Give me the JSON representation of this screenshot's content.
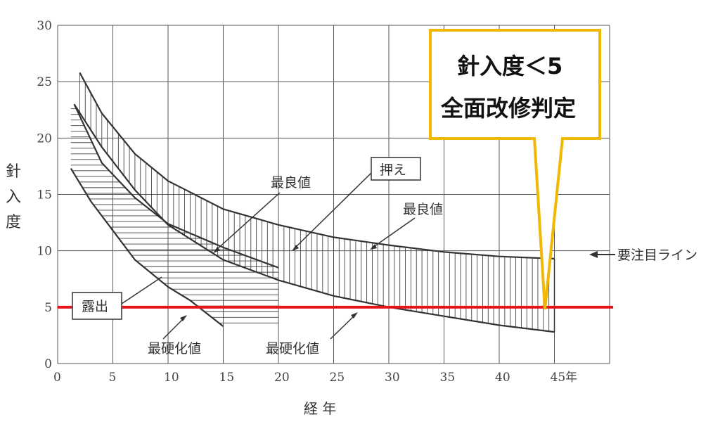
{
  "chart_data": {
    "type": "area",
    "xlabel": "経 年",
    "ylabel": "針入度",
    "x_ticks": [
      "0",
      "5",
      "10",
      "15",
      "20",
      "25",
      "30",
      "35",
      "40",
      "45年"
    ],
    "y_ticks": [
      "0",
      "5",
      "10",
      "15",
      "20",
      "25",
      "30"
    ],
    "xlim": [
      0,
      50
    ],
    "ylim": [
      0,
      30
    ],
    "grid": true,
    "bands": [
      {
        "hatch": "vertical",
        "upper": [
          [
            2,
            25.8
          ],
          [
            4,
            22.2
          ],
          [
            7,
            18.6
          ],
          [
            10,
            16.2
          ],
          [
            15,
            13.7
          ],
          [
            20,
            12.3
          ],
          [
            25,
            11.2
          ],
          [
            30,
            10.5
          ],
          [
            35,
            9.9
          ],
          [
            40,
            9.5
          ],
          [
            45,
            9.3
          ]
        ],
        "lower": [
          [
            1.5,
            23.0
          ],
          [
            4,
            19.2
          ],
          [
            7,
            15.4
          ],
          [
            10,
            12.3
          ],
          [
            15,
            9.2
          ],
          [
            20,
            7.4
          ],
          [
            25,
            6.0
          ],
          [
            30,
            5.0
          ],
          [
            35,
            4.2
          ],
          [
            40,
            3.4
          ],
          [
            45,
            2.8
          ]
        ]
      },
      {
        "hatch": "horizontal",
        "upper": [
          [
            1.5,
            23.0
          ],
          [
            4,
            17.8
          ],
          [
            7,
            14.7
          ],
          [
            10,
            12.4
          ],
          [
            15,
            10.3
          ],
          [
            20,
            8.5
          ]
        ],
        "lower": [
          [
            1.2,
            17.3
          ],
          [
            3,
            14.4
          ],
          [
            5,
            11.8
          ],
          [
            7,
            9.2
          ],
          [
            10,
            6.8
          ],
          [
            12,
            5.6
          ],
          [
            15,
            3.3
          ]
        ]
      }
    ],
    "threshold": {
      "value": 5,
      "color": "#e8141c"
    },
    "annotations": {
      "best_left": "最良値",
      "best_right": "最良値",
      "press": "押え",
      "exposed": "露出",
      "hard_left": "最硬化値",
      "hard_right": "最硬化値",
      "attention_line": "要注目ライン"
    },
    "callout": {
      "line1": "針入度＜5",
      "line2": "全面改修判定",
      "border_color": "#f2b705"
    }
  }
}
